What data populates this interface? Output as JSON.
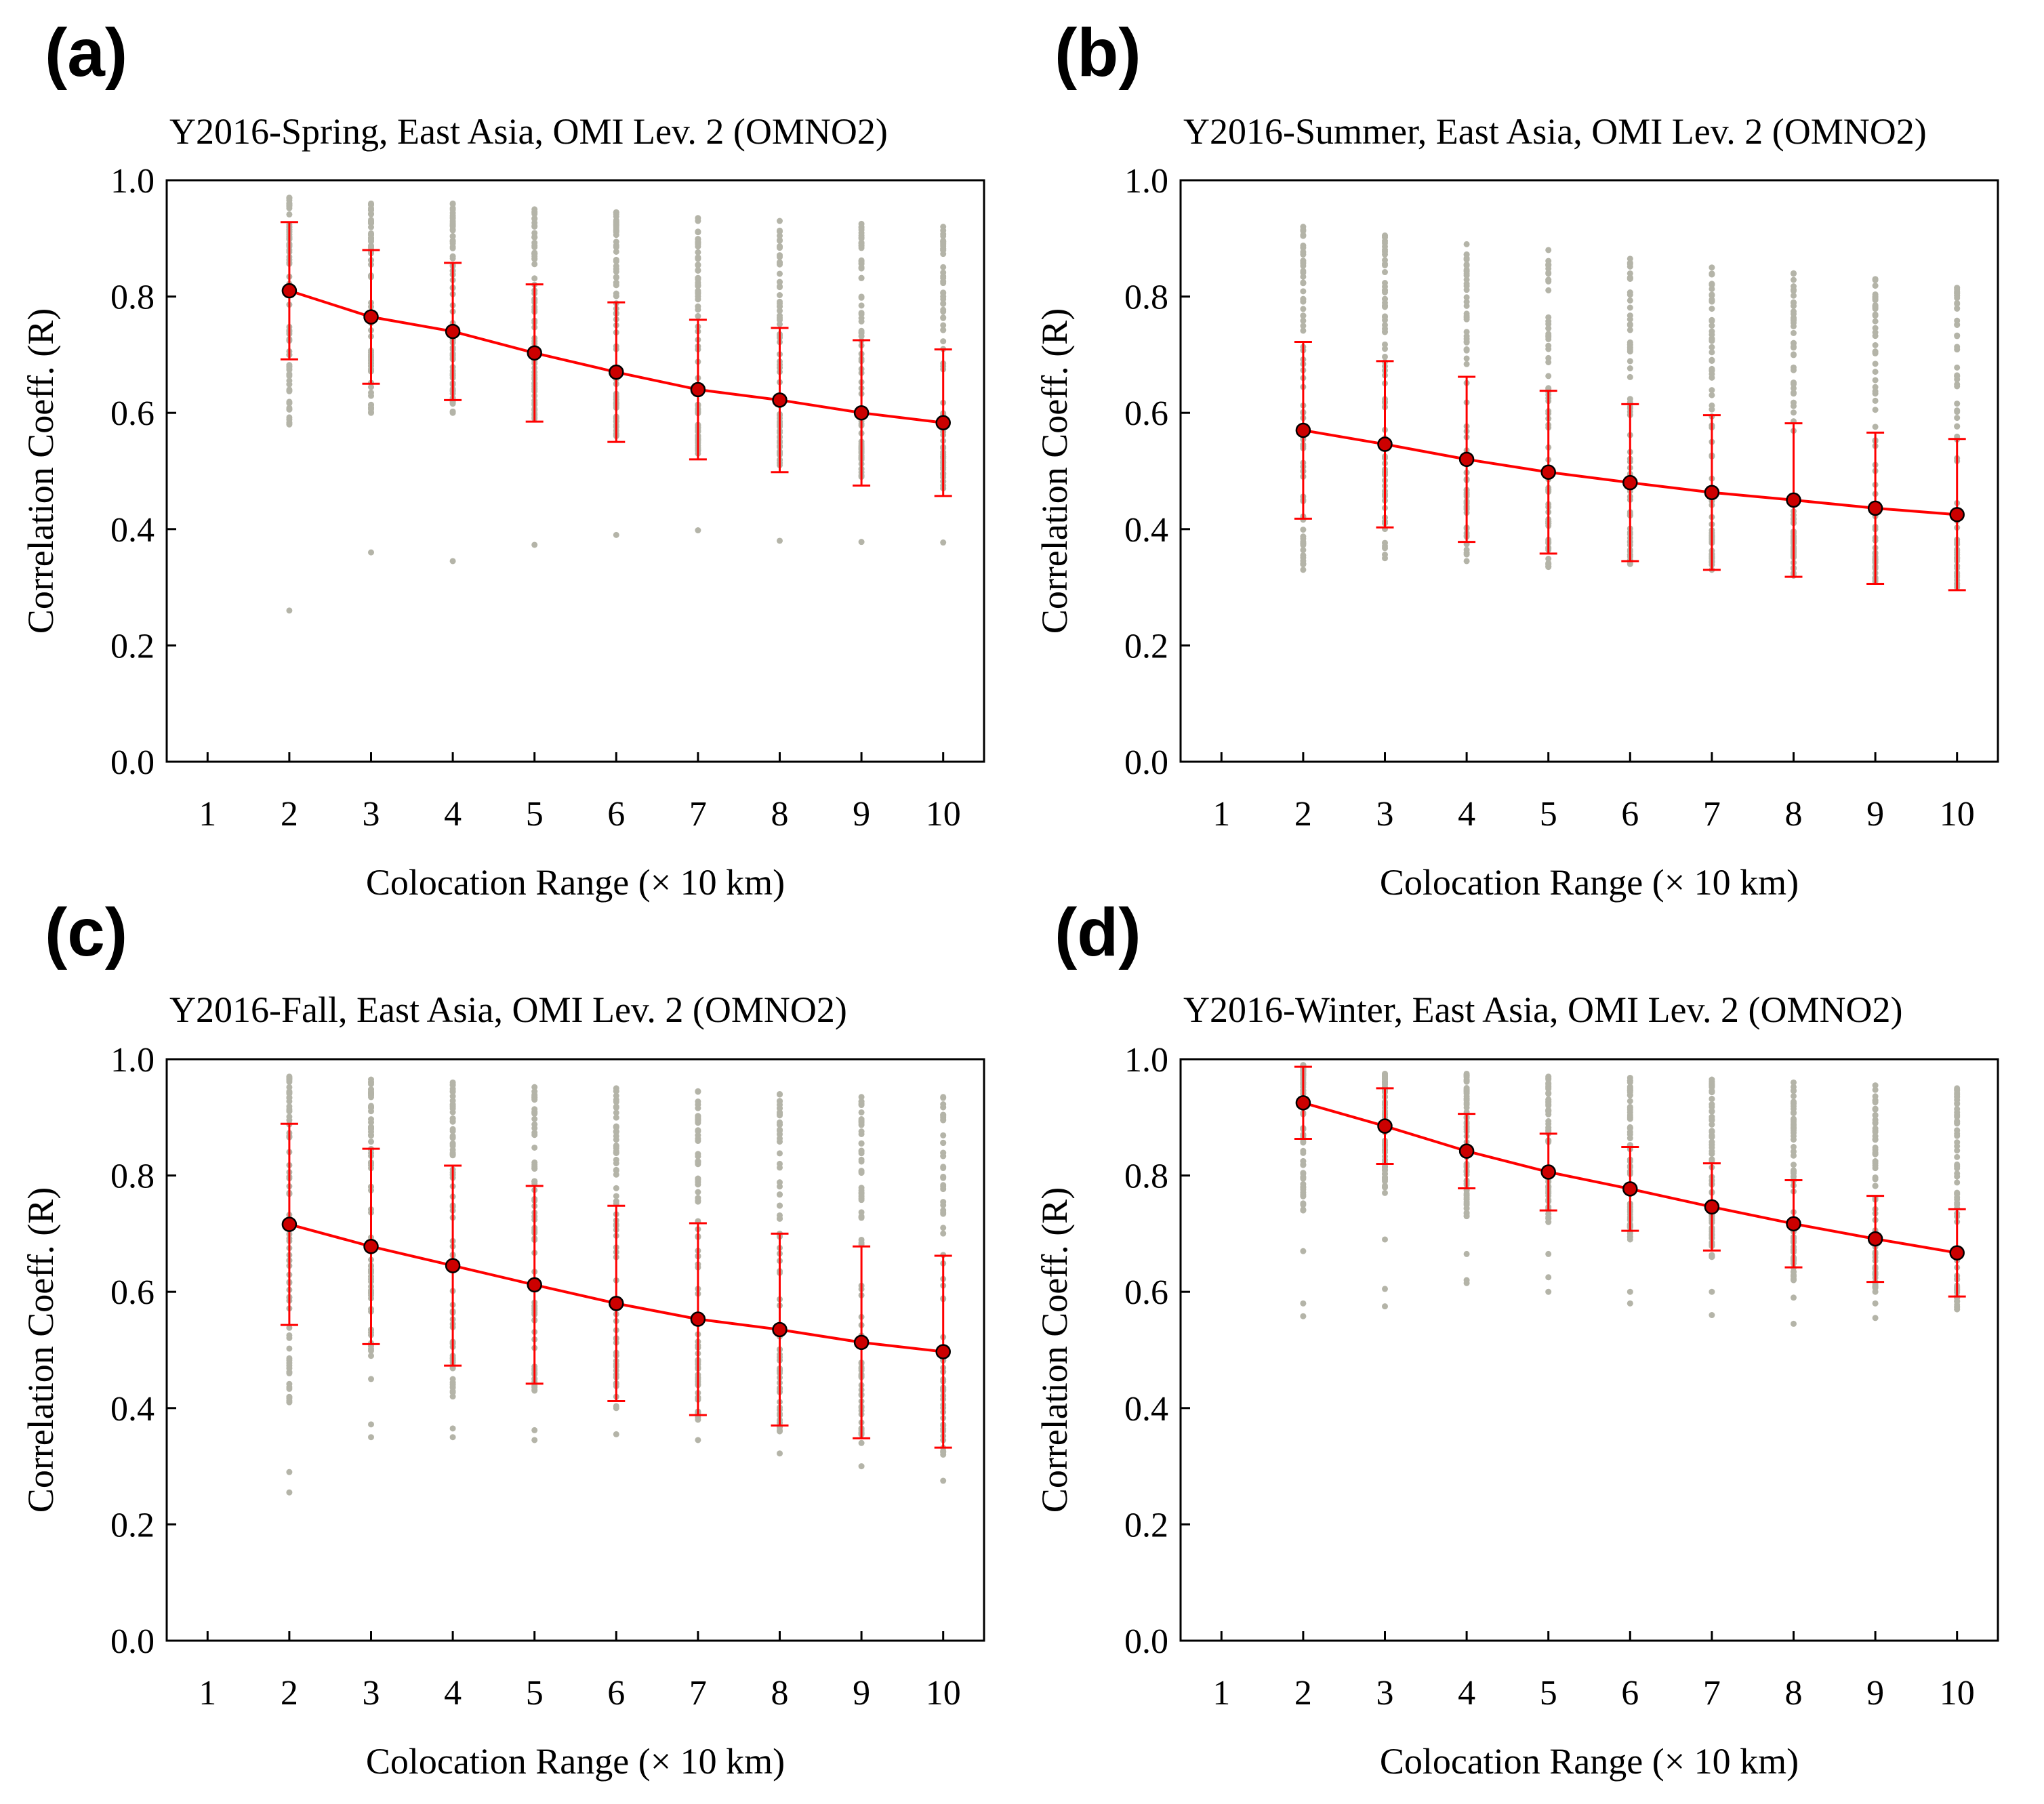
{
  "colors": {
    "mean_line": "#ff0000",
    "error_bar": "#ff0000",
    "mean_marker_fill": "#cc0000",
    "mean_marker_edge": "#000000",
    "scatter": "#b4b4a8",
    "axis": "#000000"
  },
  "chart_data": [
    {
      "type": "scatter",
      "panel": "(a)",
      "title": "Y2016-Spring, East Asia, OMI Lev. 2 (OMNO2)",
      "xlabel": "Colocation Range (× 10 km)",
      "ylabel": "Correlation Coeff. (R)",
      "xlim": [
        0.5,
        10.5
      ],
      "ylim": [
        0,
        1.0
      ],
      "xticks": [
        "1",
        "2",
        "3",
        "4",
        "5",
        "6",
        "7",
        "8",
        "9",
        "10"
      ],
      "yticks": [
        "0.0",
        "0.2",
        "0.4",
        "0.6",
        "0.8",
        "1.0"
      ],
      "x": [
        2,
        3,
        4,
        5,
        6,
        7,
        8,
        9,
        10
      ],
      "series": [
        {
          "name": "mean",
          "values": [
            0.81,
            0.765,
            0.74,
            0.703,
            0.67,
            0.64,
            0.622,
            0.6,
            0.583
          ]
        },
        {
          "name": "std",
          "values": [
            0.118,
            0.115,
            0.118,
            0.118,
            0.12,
            0.12,
            0.124,
            0.125,
            0.126
          ]
        }
      ],
      "scatter_range": {
        "max": [
          0.97,
          0.96,
          0.96,
          0.95,
          0.945,
          0.935,
          0.93,
          0.925,
          0.92
        ],
        "min": [
          0.58,
          0.6,
          0.6,
          0.59,
          0.56,
          0.53,
          0.51,
          0.49,
          0.47
        ]
      },
      "outliers": [
        [
          2,
          0.26
        ],
        [
          3,
          0.36
        ],
        [
          4,
          0.345
        ],
        [
          5,
          0.373
        ],
        [
          6,
          0.39
        ],
        [
          7,
          0.398
        ],
        [
          8,
          0.38
        ],
        [
          9,
          0.378
        ],
        [
          10,
          0.377
        ]
      ]
    },
    {
      "type": "scatter",
      "panel": "(b)",
      "title": "Y2016-Summer, East Asia, OMI Lev. 2 (OMNO2)",
      "xlabel": "Colocation Range (× 10 km)",
      "ylabel": "Correlation Coeff. (R)",
      "xlim": [
        0.5,
        10.5
      ],
      "ylim": [
        0,
        1.0
      ],
      "xticks": [
        "1",
        "2",
        "3",
        "4",
        "5",
        "6",
        "7",
        "8",
        "9",
        "10"
      ],
      "yticks": [
        "0.0",
        "0.2",
        "0.4",
        "0.6",
        "0.8",
        "1.0"
      ],
      "x": [
        2,
        3,
        4,
        5,
        6,
        7,
        8,
        9,
        10
      ],
      "series": [
        {
          "name": "mean",
          "values": [
            0.57,
            0.546,
            0.52,
            0.498,
            0.48,
            0.463,
            0.45,
            0.436,
            0.425
          ]
        },
        {
          "name": "std",
          "values": [
            0.152,
            0.143,
            0.142,
            0.14,
            0.135,
            0.133,
            0.132,
            0.13,
            0.13
          ]
        }
      ],
      "scatter_range": {
        "max": [
          0.92,
          0.905,
          0.89,
          0.88,
          0.865,
          0.85,
          0.84,
          0.83,
          0.815
        ],
        "min": [
          0.33,
          0.35,
          0.345,
          0.335,
          0.34,
          0.33,
          0.32,
          0.31,
          0.3
        ]
      },
      "outliers": []
    },
    {
      "type": "scatter",
      "panel": "(c)",
      "title": "Y2016-Fall, East Asia, OMI Lev. 2 (OMNO2)",
      "xlabel": "Colocation Range (× 10 km)",
      "ylabel": "Correlation Coeff. (R)",
      "xlim": [
        0.5,
        10.5
      ],
      "ylim": [
        0,
        1.0
      ],
      "xticks": [
        "1",
        "2",
        "3",
        "4",
        "5",
        "6",
        "7",
        "8",
        "9",
        "10"
      ],
      "yticks": [
        "0.0",
        "0.2",
        "0.4",
        "0.6",
        "0.8",
        "1.0"
      ],
      "x": [
        2,
        3,
        4,
        5,
        6,
        7,
        8,
        9,
        10
      ],
      "series": [
        {
          "name": "mean",
          "values": [
            0.716,
            0.678,
            0.645,
            0.612,
            0.58,
            0.553,
            0.535,
            0.513,
            0.497
          ]
        },
        {
          "name": "std",
          "values": [
            0.173,
            0.168,
            0.172,
            0.17,
            0.168,
            0.165,
            0.165,
            0.165,
            0.165
          ]
        }
      ],
      "scatter_range": {
        "max": [
          0.97,
          0.965,
          0.96,
          0.952,
          0.95,
          0.945,
          0.94,
          0.935,
          0.935
        ],
        "min": [
          0.41,
          0.45,
          0.42,
          0.43,
          0.4,
          0.38,
          0.36,
          0.34,
          0.32
        ]
      },
      "outliers": [
        [
          2,
          0.255
        ],
        [
          2,
          0.29
        ],
        [
          3,
          0.35
        ],
        [
          3,
          0.372
        ],
        [
          4,
          0.35
        ],
        [
          4,
          0.365
        ],
        [
          5,
          0.345
        ],
        [
          5,
          0.362
        ],
        [
          6,
          0.355
        ],
        [
          7,
          0.345
        ],
        [
          8,
          0.322
        ],
        [
          9,
          0.3
        ],
        [
          10,
          0.275
        ]
      ]
    },
    {
      "type": "scatter",
      "panel": "(d)",
      "title": "Y2016-Winter, East Asia, OMI Lev. 2 (OMNO2)",
      "xlabel": "Colocation Range (× 10 km)",
      "ylabel": "Correlation Coeff. (R)",
      "xlim": [
        0.5,
        10.5
      ],
      "ylim": [
        0,
        1.0
      ],
      "xticks": [
        "1",
        "2",
        "3",
        "4",
        "5",
        "6",
        "7",
        "8",
        "9",
        "10"
      ],
      "yticks": [
        "0.0",
        "0.2",
        "0.4",
        "0.6",
        "0.8",
        "1.0"
      ],
      "x": [
        2,
        3,
        4,
        5,
        6,
        7,
        8,
        9,
        10
      ],
      "series": [
        {
          "name": "mean",
          "values": [
            0.925,
            0.885,
            0.842,
            0.806,
            0.777,
            0.746,
            0.717,
            0.691,
            0.667
          ]
        },
        {
          "name": "std",
          "values": [
            0.062,
            0.065,
            0.064,
            0.066,
            0.072,
            0.075,
            0.075,
            0.074,
            0.075
          ]
        }
      ],
      "scatter_range": {
        "max": [
          0.99,
          0.975,
          0.975,
          0.97,
          0.968,
          0.965,
          0.96,
          0.955,
          0.95
        ],
        "min": [
          0.74,
          0.77,
          0.73,
          0.72,
          0.69,
          0.66,
          0.62,
          0.6,
          0.57
        ]
      },
      "outliers": [
        [
          2,
          0.558
        ],
        [
          2,
          0.58
        ],
        [
          2,
          0.67
        ],
        [
          3,
          0.575
        ],
        [
          3,
          0.605
        ],
        [
          3,
          0.69
        ],
        [
          4,
          0.615
        ],
        [
          4,
          0.62
        ],
        [
          4,
          0.665
        ],
        [
          5,
          0.6
        ],
        [
          5,
          0.625
        ],
        [
          5,
          0.665
        ],
        [
          6,
          0.58
        ],
        [
          6,
          0.6
        ],
        [
          7,
          0.56
        ],
        [
          7,
          0.6
        ],
        [
          8,
          0.545
        ],
        [
          8,
          0.59
        ],
        [
          9,
          0.555
        ],
        [
          9,
          0.58
        ],
        [
          10,
          0.57
        ]
      ]
    }
  ]
}
